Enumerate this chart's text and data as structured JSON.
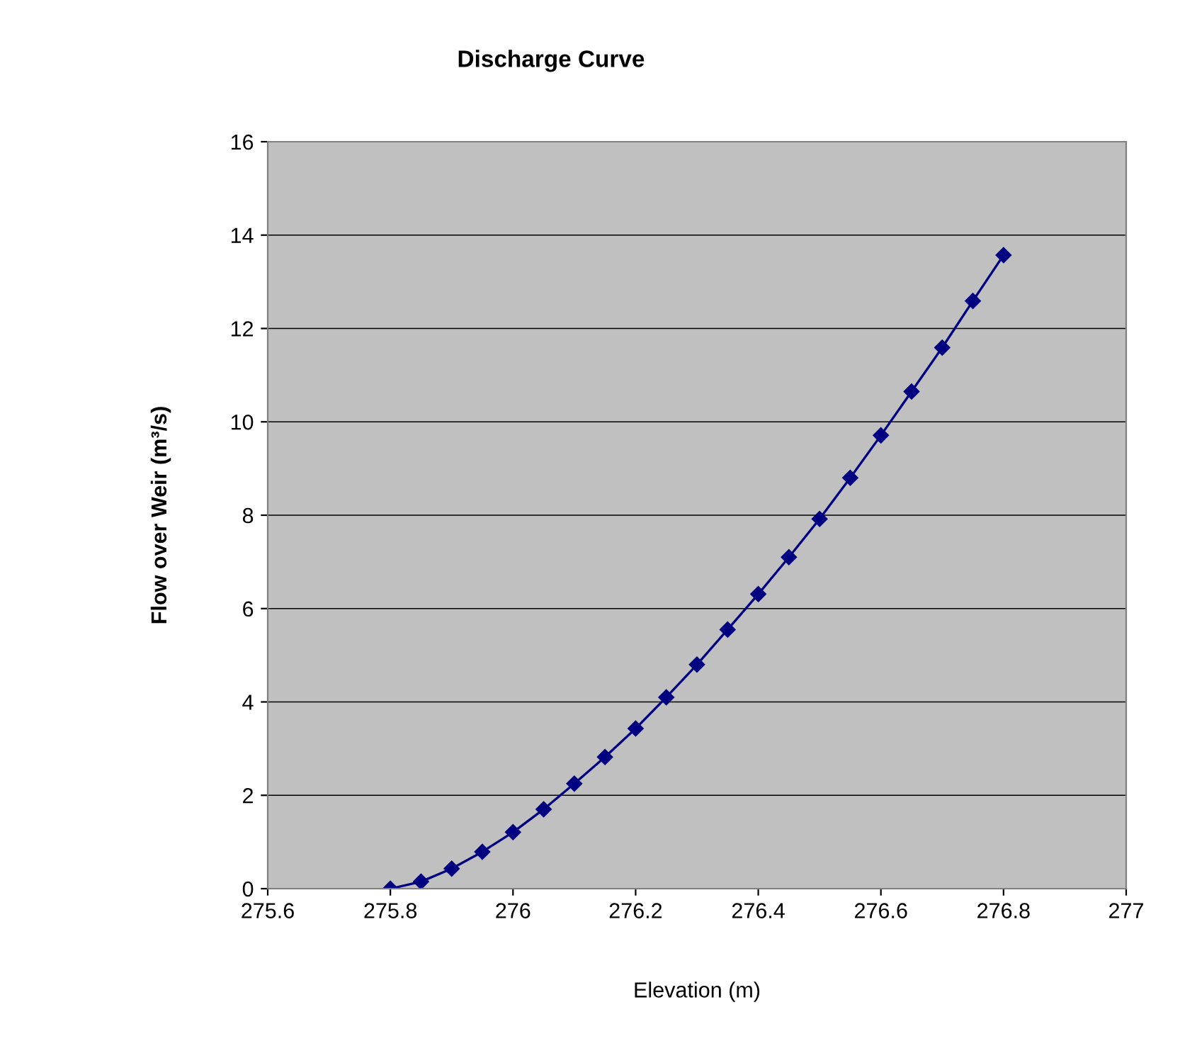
{
  "chart_data": {
    "type": "line",
    "title": "Discharge Curve",
    "xlabel": "Elevation (m)",
    "ylabel": "Flow over Weir (m³/s)",
    "x": [
      275.8,
      275.85,
      275.9,
      275.95,
      276.0,
      276.05,
      276.1,
      276.15,
      276.2,
      276.25,
      276.3,
      276.35,
      276.4,
      276.45,
      276.5,
      276.55,
      276.6,
      276.65,
      276.7,
      276.75,
      276.8
    ],
    "series": [
      {
        "color": "#000080",
        "values": [
          0,
          0.15,
          0.43,
          0.79,
          1.21,
          1.7,
          2.25,
          2.82,
          3.43,
          4.1,
          4.8,
          5.55,
          6.31,
          7.1,
          7.92,
          8.8,
          9.71,
          10.65,
          11.59,
          12.59,
          13.57
        ]
      }
    ],
    "xlim": [
      275.6,
      277
    ],
    "xticks": [
      275.6,
      275.8,
      276,
      276.2,
      276.4,
      276.6,
      276.8,
      277
    ],
    "ylim": [
      0,
      16
    ],
    "yticks": [
      0,
      2,
      4,
      6,
      8,
      10,
      12,
      14,
      16
    ],
    "grid": "y",
    "marker": "diamond",
    "line_style": "solid",
    "legend": false
  }
}
